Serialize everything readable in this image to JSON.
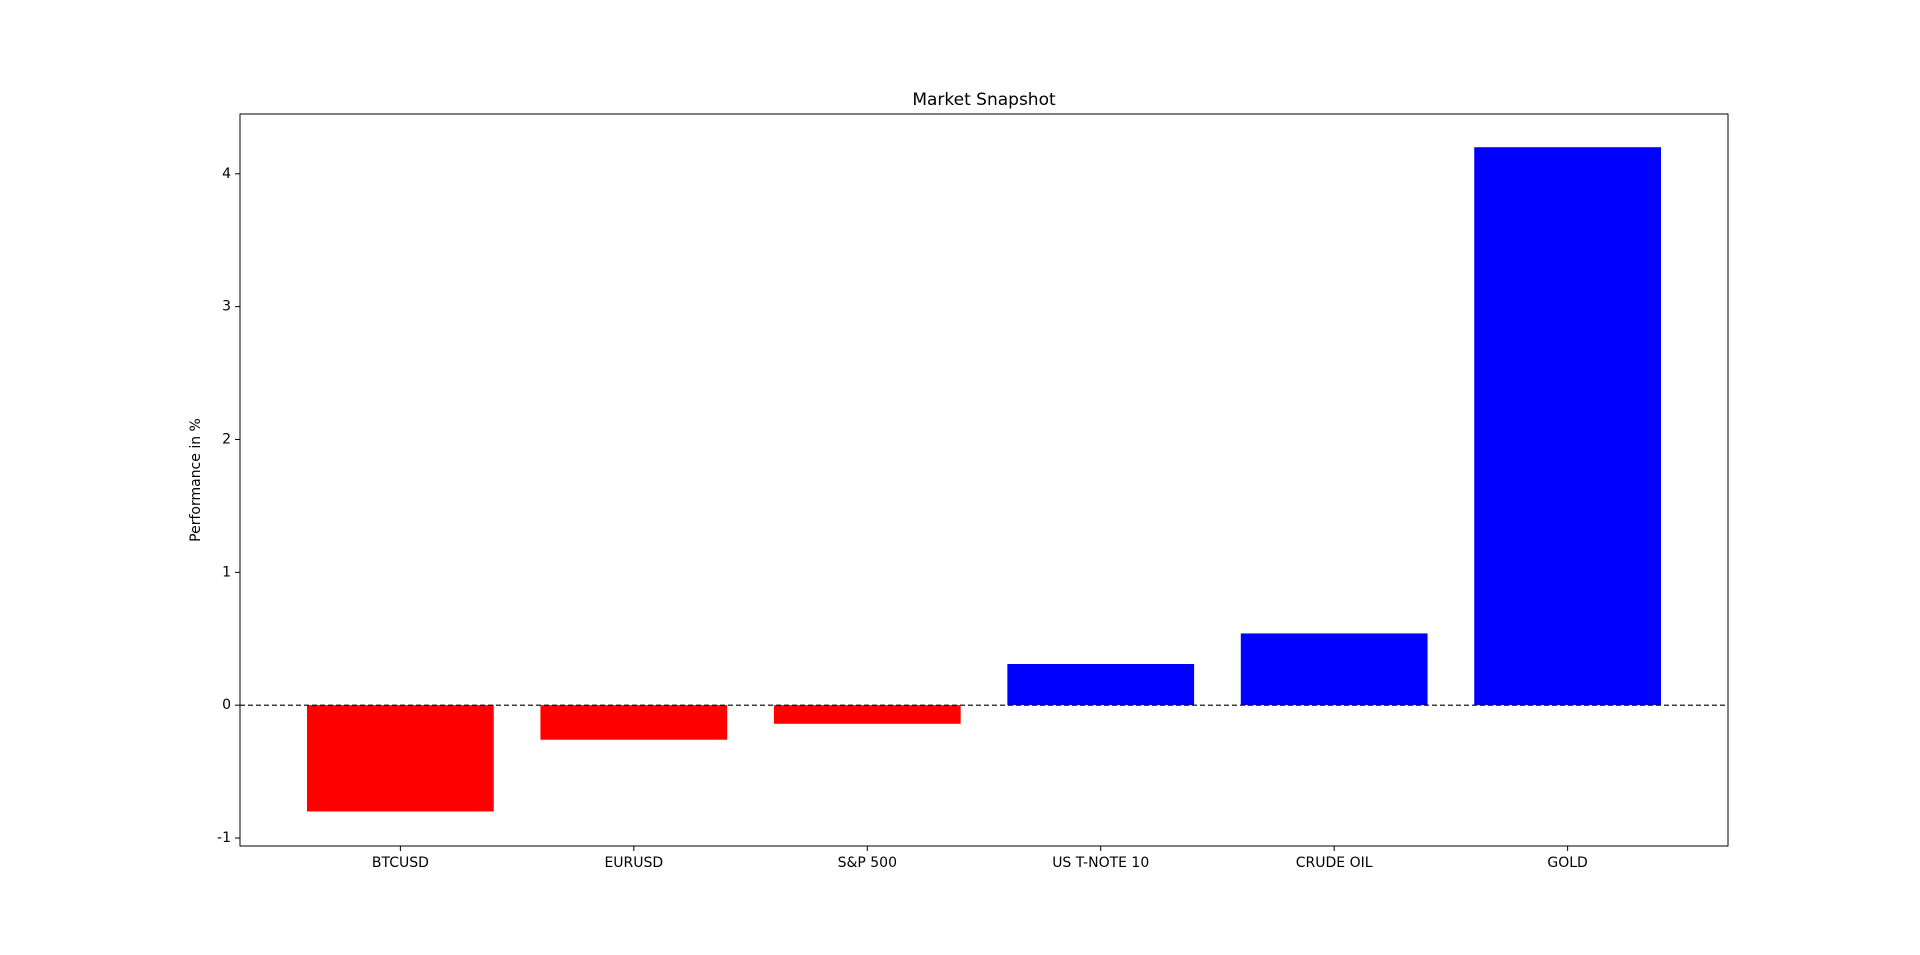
{
  "chart_data": {
    "type": "bar",
    "title": "Market Snapshot",
    "y_label": "Performance in %",
    "categories": [
      "BTCUSD",
      "EURUSD",
      "S&P 500",
      "US T-NOTE 10",
      "CRUDE OIL",
      "GOLD"
    ],
    "values": [
      -0.8,
      -0.26,
      -0.14,
      0.31,
      0.54,
      4.2
    ],
    "colors": [
      "#ff0000",
      "#ff0000",
      "#ff0000",
      "#0000ff",
      "#0000ff",
      "#0000ff"
    ],
    "ylim": [
      -1.06,
      4.45
    ],
    "yticks": [
      -1,
      0,
      1,
      2,
      3,
      4
    ],
    "reference_line": 0,
    "grid": false
  }
}
